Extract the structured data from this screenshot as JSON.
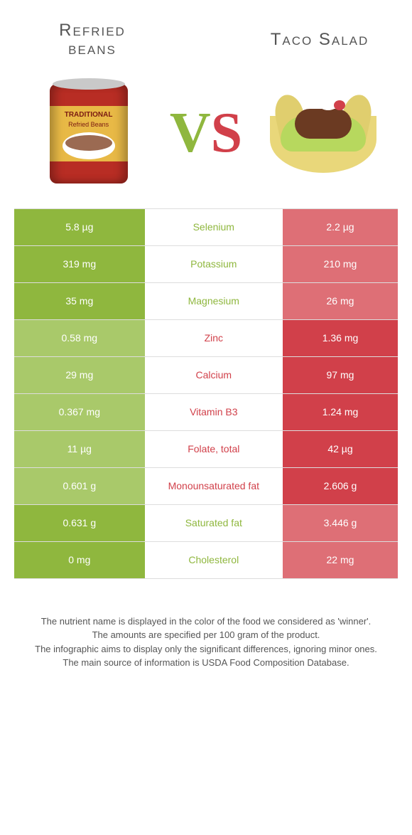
{
  "colors": {
    "left": "#8fb73e",
    "right": "#d1404a",
    "left_muted": "#a9c96a",
    "right_muted": "#de6f76"
  },
  "header": {
    "left_line1": "Refried",
    "left_line2": "beans",
    "right": "Taco Salad",
    "vs_v": "V",
    "vs_s": "S"
  },
  "rows": [
    {
      "nutrient": "Selenium",
      "left": "5.8 µg",
      "right": "2.2 µg",
      "winner": "left"
    },
    {
      "nutrient": "Potassium",
      "left": "319 mg",
      "right": "210 mg",
      "winner": "left"
    },
    {
      "nutrient": "Magnesium",
      "left": "35 mg",
      "right": "26 mg",
      "winner": "left"
    },
    {
      "nutrient": "Zinc",
      "left": "0.58 mg",
      "right": "1.36 mg",
      "winner": "right"
    },
    {
      "nutrient": "Calcium",
      "left": "29 mg",
      "right": "97 mg",
      "winner": "right"
    },
    {
      "nutrient": "Vitamin B3",
      "left": "0.367 mg",
      "right": "1.24 mg",
      "winner": "right"
    },
    {
      "nutrient": "Folate, total",
      "left": "11 µg",
      "right": "42 µg",
      "winner": "right"
    },
    {
      "nutrient": "Monounsaturated fat",
      "left": "0.601 g",
      "right": "2.606 g",
      "winner": "right"
    },
    {
      "nutrient": "Saturated fat",
      "left": "0.631 g",
      "right": "3.446 g",
      "winner": "left"
    },
    {
      "nutrient": "Cholesterol",
      "left": "0 mg",
      "right": "22 mg",
      "winner": "left"
    }
  ],
  "footer": {
    "l1": "The nutrient name is displayed in the color of the food we considered as 'winner'.",
    "l2": "The amounts are specified per 100 gram of the product.",
    "l3": "The infographic aims to display only the significant differences, ignoring minor ones.",
    "l4": "The main source of information is USDA Food Composition Database."
  },
  "can": {
    "label": "TRADITIONAL",
    "sub": "Refried Beans"
  }
}
